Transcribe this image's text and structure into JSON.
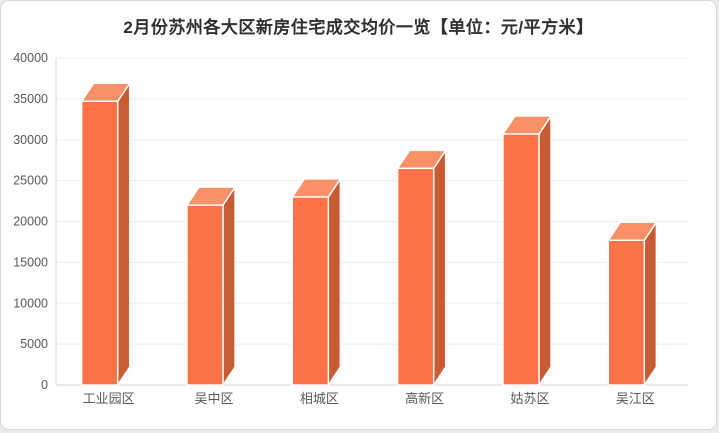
{
  "page": {
    "background_color": "#ebebeb",
    "card_background": "#ffffff",
    "card_border_color": "#d8d8d8"
  },
  "chart_data": {
    "type": "bar",
    "style": "3d-bar",
    "title": "2月份苏州各大区新房住宅成交均价一览【单位：元/平方米】",
    "unit": "元/平方米",
    "categories": [
      "工业园区",
      "吴中区",
      "相城区",
      "高新区",
      "姑苏区",
      "吴江区"
    ],
    "values": [
      34700,
      22000,
      23000,
      26500,
      30700,
      17700
    ],
    "ylim": [
      0,
      40000
    ],
    "ytick_step": 5000,
    "ytick_labels": [
      "0",
      "5000",
      "10000",
      "15000",
      "20000",
      "25000",
      "30000",
      "35000",
      "40000"
    ],
    "grid": "horizontal",
    "legend": "none",
    "colors": {
      "bar_front": "#FC7347",
      "bar_side": "#C75B33",
      "bar_top": "#FA9068",
      "bar_edge": "#FFFFFF",
      "gridline": "#EDEDED",
      "axis_line": "#D6D6D6",
      "tick_text": "#595959",
      "title_text": "#303030"
    }
  }
}
